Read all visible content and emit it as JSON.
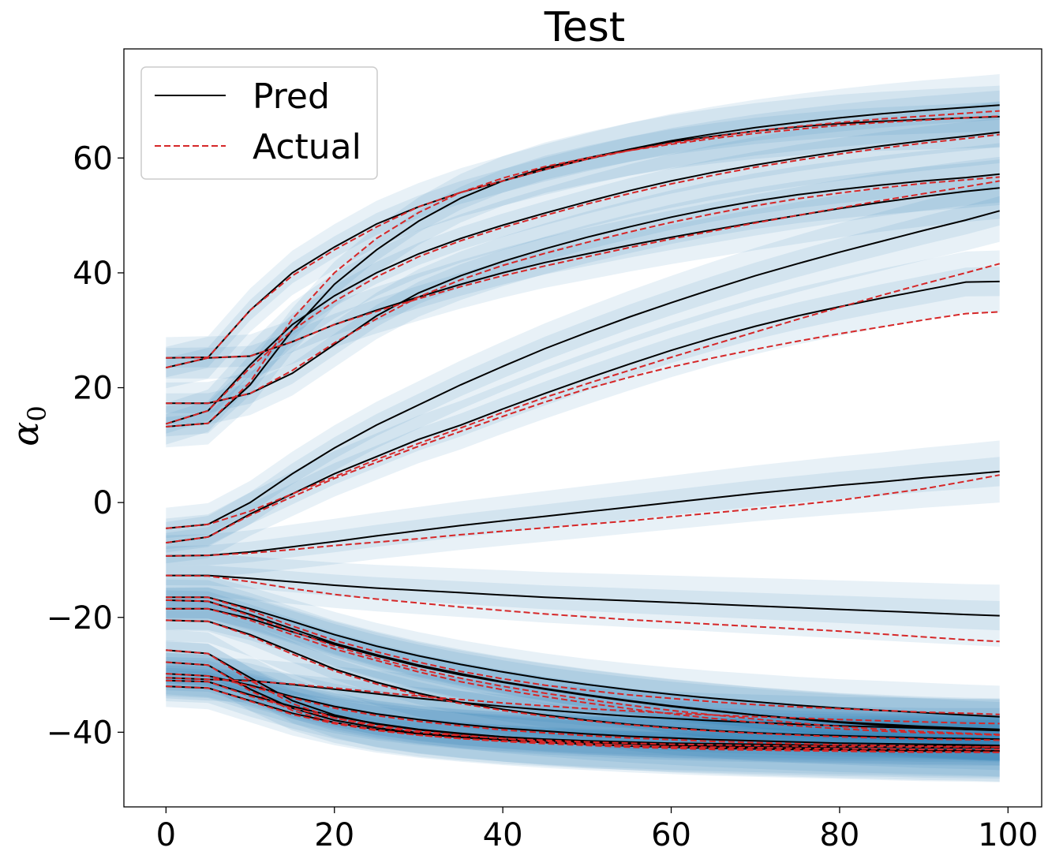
{
  "chart_data": {
    "type": "line",
    "title": "Test",
    "xlabel": "",
    "ylabel": "α",
    "ylabel_subscript": "0",
    "xlim": [
      -5,
      104
    ],
    "ylim": [
      -53,
      79
    ],
    "xticks": [
      0,
      20,
      40,
      60,
      80,
      100
    ],
    "yticks": [
      -40,
      -20,
      0,
      20,
      40,
      60
    ],
    "xtick_labels": [
      "0",
      "20",
      "40",
      "60",
      "80",
      "100"
    ],
    "ytick_labels": [
      "−40",
      "−20",
      "0",
      "20",
      "40",
      "60"
    ],
    "grid": false,
    "legend": {
      "position": "top-left",
      "entries": [
        {
          "label": "Pred",
          "color": "#000000",
          "style": "solid"
        },
        {
          "label": "Actual",
          "color": "#d62728",
          "style": "dashed"
        }
      ]
    },
    "band_color": "#1f77b4",
    "x": [
      0,
      5,
      10,
      15,
      20,
      25,
      30,
      35,
      40,
      45,
      50,
      55,
      60,
      65,
      70,
      75,
      80,
      85,
      90,
      95,
      99
    ],
    "series": [
      {
        "id": "s1",
        "pred": [
          25.2,
          25.3,
          33.5,
          40,
          44.5,
          48.5,
          51.5,
          54,
          56,
          58,
          59.8,
          61.5,
          63,
          64.2,
          65.3,
          66.2,
          67,
          67.7,
          68.3,
          68.8,
          69.2
        ],
        "actual": [
          25.2,
          25.3,
          33.5,
          39.5,
          44,
          48,
          51.5,
          54,
          56,
          58,
          59.8,
          61.3,
          62.6,
          63.7,
          64.7,
          65.5,
          66.2,
          66.8,
          67.3,
          67.8,
          68.2
        ]
      },
      {
        "id": "s2",
        "pred": [
          13.2,
          13.8,
          20.5,
          30,
          38,
          44,
          49,
          53,
          56,
          58.3,
          60,
          61.5,
          62.8,
          63.8,
          64.7,
          65.4,
          66,
          66.4,
          66.7,
          67,
          67.2
        ],
        "actual": [
          13.2,
          13.8,
          21,
          32,
          40,
          46,
          50.5,
          54,
          56.5,
          58.5,
          60,
          61.3,
          62.4,
          63.4,
          64.3,
          65,
          65.7,
          66.2,
          66.6,
          67,
          67.3
        ]
      },
      {
        "id": "s3",
        "pred": [
          13.7,
          16,
          24,
          31,
          36,
          40,
          43.3,
          46,
          48.3,
          50.4,
          52.4,
          54.3,
          56,
          57.5,
          58.8,
          60,
          61.1,
          62.1,
          63,
          63.8,
          64.5
        ],
        "actual": [
          13.7,
          16,
          23.5,
          30,
          35,
          39.3,
          42.8,
          45.6,
          47.9,
          50,
          52,
          53.8,
          55.5,
          57,
          58.4,
          59.6,
          60.7,
          61.7,
          62.6,
          63.4,
          64.1
        ]
      },
      {
        "id": "s4",
        "pred": [
          17.3,
          17.3,
          19,
          22.5,
          27.5,
          32.5,
          36.5,
          39.5,
          42,
          44.2,
          46.2,
          48,
          49.7,
          51.2,
          52.5,
          53.6,
          54.5,
          55.3,
          56,
          56.6,
          57.2
        ],
        "actual": [
          17.3,
          17.3,
          19,
          23,
          27.8,
          32,
          35.8,
          38.8,
          41.3,
          43.4,
          45.3,
          47.1,
          48.8,
          50.3,
          51.7,
          52.9,
          53.9,
          54.8,
          55.6,
          56.2,
          56.7
        ]
      },
      {
        "id": "s5",
        "pred": [
          23.5,
          25.2,
          25.5,
          28,
          31,
          33.5,
          35.8,
          38,
          40,
          41.8,
          43.3,
          44.8,
          46.2,
          47.5,
          48.8,
          50,
          51.2,
          52.3,
          53.3,
          54.2,
          54.8
        ],
        "actual": [
          23.5,
          25.2,
          25.5,
          28,
          31,
          33.3,
          35.5,
          37.6,
          39.5,
          41.2,
          42.8,
          44.4,
          45.9,
          47.3,
          48.7,
          50,
          51.3,
          52.6,
          53.8,
          55,
          56
        ]
      },
      {
        "id": "s6",
        "pred": [
          -4.5,
          -3.8,
          0,
          5,
          9.5,
          13.5,
          17,
          20.5,
          23.7,
          26.8,
          29.6,
          32.3,
          34.8,
          37.2,
          39.5,
          41.6,
          43.6,
          45.5,
          47.4,
          49.2,
          50.8
        ],
        "actual": [
          -4.5,
          -3.8,
          -1.5,
          1.5,
          4.5,
          7.5,
          10.3,
          13,
          15.7,
          18.3,
          20.7,
          23,
          25.3,
          27.5,
          29.7,
          31.9,
          34,
          36.1,
          38.1,
          40,
          41.6
        ]
      },
      {
        "id": "s7",
        "pred": [
          -7,
          -6,
          -2,
          1.5,
          5,
          8,
          11,
          13.5,
          16.3,
          19,
          21.6,
          24.1,
          26.5,
          28.7,
          30.7,
          32.5,
          34.1,
          35.6,
          37,
          38.4,
          38.5
        ],
        "actual": [
          -7,
          -6,
          -2.2,
          1,
          4.2,
          7,
          9.8,
          12.4,
          15,
          17.5,
          19.8,
          21.8,
          23.6,
          25.2,
          26.7,
          28.1,
          29.4,
          30.6,
          31.8,
          32.9,
          33.2
        ]
      },
      {
        "id": "s8",
        "pred": [
          -9.3,
          -9.2,
          -8.6,
          -7.7,
          -6.8,
          -5.8,
          -4.9,
          -4,
          -3.2,
          -2.4,
          -1.6,
          -0.8,
          0,
          0.8,
          1.6,
          2.3,
          3,
          3.6,
          4.3,
          4.9,
          5.4
        ],
        "actual": [
          -9.3,
          -9.2,
          -8.8,
          -8.2,
          -7.5,
          -6.9,
          -6.3,
          -5.6,
          -5,
          -4.4,
          -3.8,
          -3.2,
          -2.5,
          -1.8,
          -1.1,
          -0.4,
          0.4,
          1.4,
          2.4,
          3.7,
          4.8
        ]
      },
      {
        "id": "s9",
        "pred": [
          -12.7,
          -12.7,
          -13.2,
          -13.8,
          -14.4,
          -14.9,
          -15.3,
          -15.7,
          -16.1,
          -16.5,
          -16.8,
          -17.1,
          -17.4,
          -17.7,
          -18,
          -18.3,
          -18.6,
          -18.9,
          -19.2,
          -19.5,
          -19.7
        ],
        "actual": [
          -12.7,
          -12.8,
          -13.8,
          -15,
          -16,
          -16.8,
          -17.5,
          -18.2,
          -18.8,
          -19.4,
          -19.9,
          -20.4,
          -20.8,
          -21.2,
          -21.6,
          -22,
          -22.4,
          -22.9,
          -23.4,
          -23.9,
          -24.2
        ]
      },
      {
        "id": "s10",
        "pred": [
          -16.5,
          -16.5,
          -18.5,
          -20.7,
          -23,
          -25,
          -26.7,
          -28.2,
          -29.5,
          -30.7,
          -31.7,
          -32.6,
          -33.4,
          -34.1,
          -34.7,
          -35.3,
          -35.8,
          -36.2,
          -36.6,
          -37,
          -37.3
        ],
        "actual": [
          -16.5,
          -16.5,
          -18.8,
          -21.5,
          -24,
          -26,
          -27.8,
          -29.4,
          -30.7,
          -31.8,
          -32.7,
          -33.5,
          -34.1,
          -34.7,
          -35.2,
          -35.6,
          -35.9,
          -36.2,
          -36.5,
          -36.7,
          -36.9
        ]
      },
      {
        "id": "s11",
        "pred": [
          -17,
          -17.2,
          -19.5,
          -22,
          -24.5,
          -26.5,
          -28.3,
          -29.8,
          -31.2,
          -32.4,
          -33.5,
          -34.5,
          -35.4,
          -36.2,
          -37,
          -37.7,
          -38.3,
          -38.8,
          -39.2,
          -39.5,
          -39.7
        ],
        "actual": [
          -17,
          -17.2,
          -19.7,
          -22.4,
          -25,
          -27.1,
          -29,
          -30.6,
          -32,
          -33.2,
          -34.3,
          -35.3,
          -36.2,
          -37,
          -37.7,
          -38.4,
          -39,
          -39.5,
          -39.9,
          -40.2,
          -40.4
        ]
      },
      {
        "id": "s12",
        "pred": [
          -18.5,
          -18.5,
          -20.2,
          -22.5,
          -24.7,
          -26.7,
          -28.5,
          -30,
          -31.3,
          -32.5,
          -33.6,
          -34.6,
          -35.5,
          -36.3,
          -37,
          -37.6,
          -38.2,
          -38.6,
          -39,
          -39.3,
          -39.5
        ],
        "actual": [
          -18.5,
          -18.5,
          -20.5,
          -23,
          -25.5,
          -27.5,
          -29.5,
          -31.2,
          -32.6,
          -33.8,
          -34.9,
          -35.9,
          -36.8,
          -37.6,
          -38.3,
          -38.9,
          -39.4,
          -39.8,
          -40.1,
          -40.3,
          -40.5
        ]
      },
      {
        "id": "s13",
        "pred": [
          -20.5,
          -20.7,
          -23,
          -26,
          -29,
          -31.3,
          -33.2,
          -34.8,
          -36,
          -37,
          -37.9,
          -38.6,
          -39.2,
          -39.7,
          -40.1,
          -40.4,
          -40.6,
          -40.8,
          -41,
          -41.1,
          -41.2
        ],
        "actual": [
          -20.5,
          -20.7,
          -23.2,
          -26.4,
          -29.3,
          -31.6,
          -33.5,
          -35,
          -36.2,
          -37.2,
          -38,
          -38.7,
          -39.3,
          -39.8,
          -40.2,
          -40.5,
          -40.8,
          -41,
          -41.2,
          -41.3,
          -41.4
        ]
      },
      {
        "id": "s14",
        "pred": [
          -25.7,
          -26.3,
          -30.5,
          -34.5,
          -37,
          -38.6,
          -39.6,
          -40.3,
          -40.8,
          -41.2,
          -41.5,
          -41.7,
          -41.9,
          -42,
          -42.1,
          -42.2,
          -42.3,
          -42.3,
          -42.4,
          -42.4,
          -42.4
        ],
        "actual": [
          -25.7,
          -26.3,
          -31,
          -35,
          -37.5,
          -39,
          -40,
          -40.6,
          -41.1,
          -41.4,
          -41.7,
          -41.9,
          -42.1,
          -42.2,
          -42.3,
          -42.4,
          -42.5,
          -42.5,
          -42.6,
          -42.6,
          -42.6
        ]
      },
      {
        "id": "s15",
        "pred": [
          -27.8,
          -28.3,
          -32.5,
          -35.8,
          -37.9,
          -39.2,
          -40.1,
          -40.7,
          -41.2,
          -41.5,
          -41.8,
          -42,
          -42.2,
          -42.3,
          -42.4,
          -42.5,
          -42.6,
          -42.6,
          -42.7,
          -42.7,
          -42.7
        ],
        "actual": [
          -27.8,
          -28.3,
          -32.8,
          -36.2,
          -38.3,
          -39.6,
          -40.5,
          -41.1,
          -41.5,
          -41.8,
          -42.1,
          -42.3,
          -42.5,
          -42.6,
          -42.7,
          -42.8,
          -42.9,
          -42.9,
          -43,
          -43,
          -43
        ]
      },
      {
        "id": "s16",
        "pred": [
          -30.5,
          -30.8,
          -31,
          -31.7,
          -32.5,
          -33.3,
          -34.1,
          -34.8,
          -35.5,
          -36.1,
          -36.7,
          -37.2,
          -37.6,
          -38,
          -38.3,
          -38.6,
          -38.9,
          -39.1,
          -39.3,
          -39.5,
          -39.6
        ],
        "actual": [
          -30.5,
          -30.8,
          -31.1,
          -31.6,
          -32.3,
          -33,
          -33.7,
          -34.3,
          -34.9,
          -35.4,
          -35.9,
          -36.3,
          -36.7,
          -37,
          -37.3,
          -37.5,
          -37.8,
          -38,
          -38.2,
          -38.4,
          -38.5
        ]
      },
      {
        "id": "s17",
        "pred": [
          -29.8,
          -30.2,
          -31.8,
          -33.8,
          -35.5,
          -36.8,
          -37.8,
          -38.6,
          -39.3,
          -39.8,
          -40.3,
          -40.7,
          -41,
          -41.3,
          -41.5,
          -41.7,
          -41.9,
          -42,
          -42.1,
          -42.2,
          -42.3
        ],
        "actual": [
          -29.8,
          -30.2,
          -32,
          -34,
          -35.8,
          -37.1,
          -38.1,
          -38.9,
          -39.6,
          -40.1,
          -40.6,
          -41,
          -41.3,
          -41.6,
          -41.8,
          -42,
          -42.2,
          -42.3,
          -42.4,
          -42.5,
          -42.6
        ]
      },
      {
        "id": "s18",
        "pred": [
          -31,
          -31.2,
          -33.5,
          -35.5,
          -37.2,
          -38.5,
          -39.5,
          -40.2,
          -40.8,
          -41.3,
          -41.7,
          -42,
          -42.3,
          -42.5,
          -42.7,
          -42.8,
          -42.9,
          -43,
          -43.1,
          -43.1,
          -43.2
        ],
        "actual": [
          -31,
          -31.2,
          -33.7,
          -35.8,
          -37.5,
          -38.8,
          -39.8,
          -40.5,
          -41.1,
          -41.6,
          -42,
          -42.3,
          -42.6,
          -42.8,
          -43,
          -43.1,
          -43.2,
          -43.3,
          -43.4,
          -43.4,
          -43.5
        ]
      },
      {
        "id": "s19",
        "pred": [
          -32,
          -32.3,
          -34.5,
          -36.7,
          -38.3,
          -39.5,
          -40.3,
          -40.9,
          -41.4,
          -41.8,
          -42.1,
          -42.4,
          -42.6,
          -42.8,
          -42.9,
          -43,
          -43.1,
          -43.2,
          -43.3,
          -43.3,
          -43.3
        ],
        "actual": [
          -32,
          -32.3,
          -34.6,
          -36.9,
          -38.5,
          -39.7,
          -40.5,
          -41.1,
          -41.6,
          -42,
          -42.3,
          -42.6,
          -42.8,
          -43,
          -43.1,
          -43.2,
          -43.3,
          -43.4,
          -43.5,
          -43.5,
          -43.5
        ]
      }
    ]
  }
}
